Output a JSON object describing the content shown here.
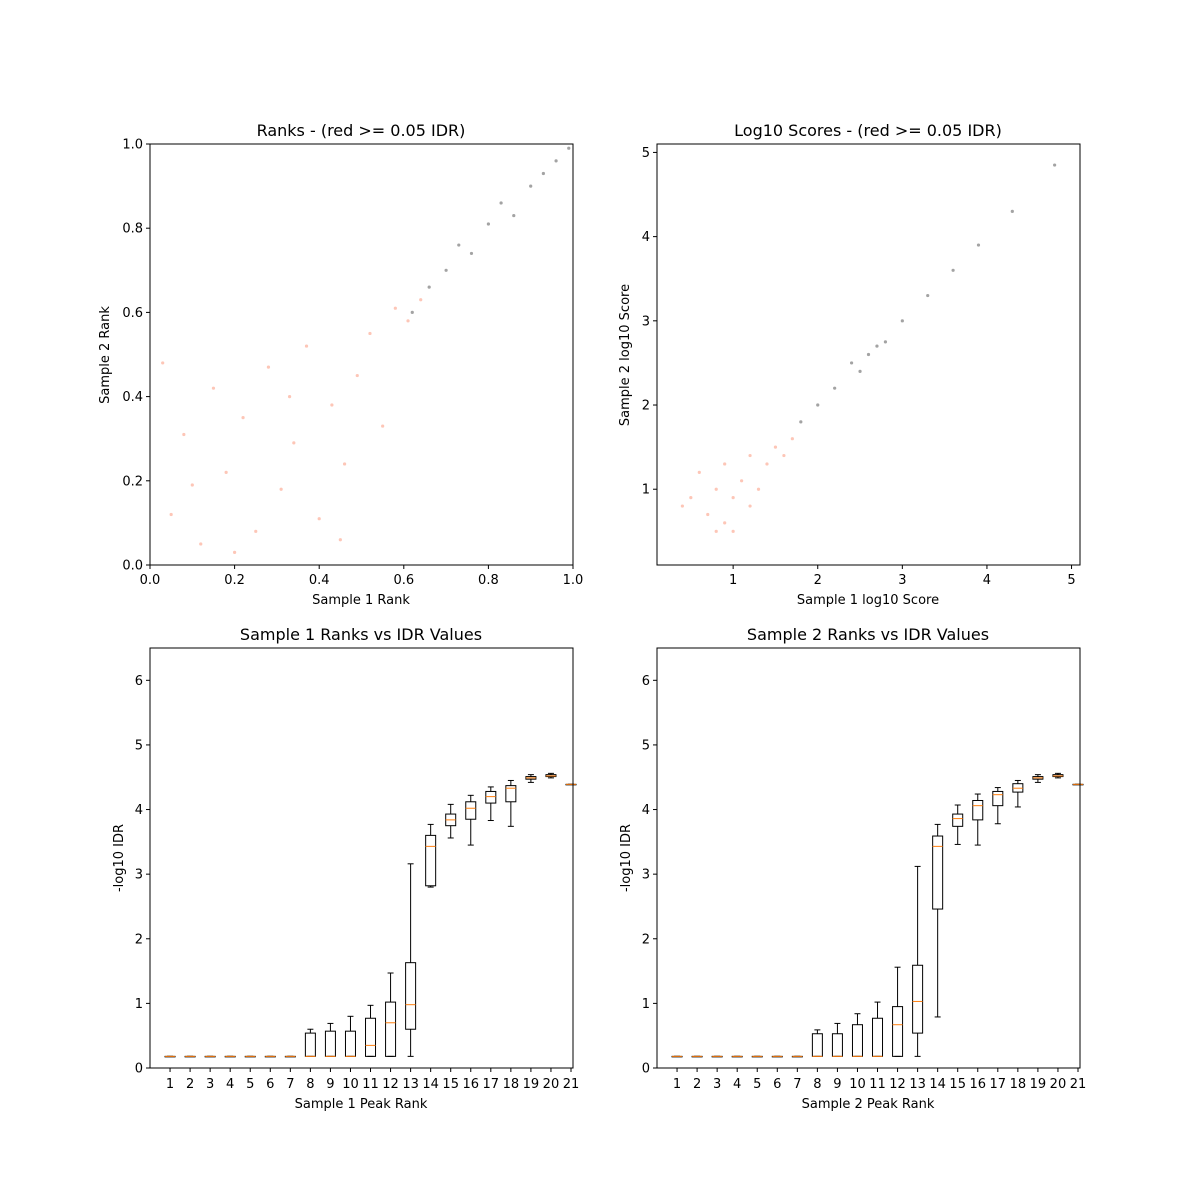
{
  "chart_data": [
    {
      "type": "scatter",
      "title": "Ranks - (red >= 0.05 IDR)",
      "xlabel": "Sample 1 Rank",
      "ylabel": "Sample 2 Rank",
      "xlim": [
        0.0,
        1.0
      ],
      "ylim": [
        0.0,
        1.0
      ],
      "xticks": [
        0.0,
        0.2,
        0.4,
        0.6,
        0.8,
        1.0
      ],
      "yticks": [
        0.0,
        0.2,
        0.4,
        0.6,
        0.8,
        1.0
      ],
      "xtick_labels": [
        "0.0",
        "0.2",
        "0.4",
        "0.6",
        "0.8",
        "1.0"
      ],
      "ytick_labels": [
        "0.0",
        "0.2",
        "0.4",
        "0.6",
        "0.8",
        "1.0"
      ],
      "colors": {
        "pass": "#333333",
        "fail": "#fa8060"
      },
      "series": [
        {
          "group": "fail",
          "points": [
            [
              0.05,
              0.12
            ],
            [
              0.08,
              0.31
            ],
            [
              0.12,
              0.05
            ],
            [
              0.15,
              0.42
            ],
            [
              0.18,
              0.22
            ],
            [
              0.22,
              0.35
            ],
            [
              0.25,
              0.08
            ],
            [
              0.28,
              0.47
            ],
            [
              0.31,
              0.18
            ],
            [
              0.34,
              0.29
            ],
            [
              0.37,
              0.52
            ],
            [
              0.4,
              0.11
            ],
            [
              0.43,
              0.38
            ],
            [
              0.46,
              0.24
            ],
            [
              0.49,
              0.45
            ],
            [
              0.52,
              0.55
            ],
            [
              0.55,
              0.33
            ],
            [
              0.58,
              0.61
            ],
            [
              0.61,
              0.58
            ],
            [
              0.64,
              0.63
            ],
            [
              0.03,
              0.48
            ],
            [
              0.1,
              0.19
            ],
            [
              0.2,
              0.03
            ],
            [
              0.33,
              0.4
            ],
            [
              0.45,
              0.06
            ]
          ]
        },
        {
          "group": "pass",
          "points": [
            [
              0.62,
              0.6
            ],
            [
              0.66,
              0.66
            ],
            [
              0.7,
              0.7
            ],
            [
              0.73,
              0.76
            ],
            [
              0.76,
              0.74
            ],
            [
              0.8,
              0.81
            ],
            [
              0.83,
              0.86
            ],
            [
              0.86,
              0.83
            ],
            [
              0.9,
              0.9
            ],
            [
              0.93,
              0.93
            ],
            [
              0.96,
              0.96
            ],
            [
              0.99,
              0.99
            ]
          ]
        }
      ]
    },
    {
      "type": "scatter",
      "title": "Log10 Scores - (red >= 0.05 IDR)",
      "xlabel": "Sample 1 log10 Score",
      "ylabel": "Sample 2 log10 Score",
      "xlim": [
        0.1,
        5.1
      ],
      "ylim": [
        0.1,
        5.1
      ],
      "xticks": [
        1,
        2,
        3,
        4,
        5
      ],
      "yticks": [
        1,
        2,
        3,
        4,
        5
      ],
      "xtick_labels": [
        "1",
        "2",
        "3",
        "4",
        "5"
      ],
      "ytick_labels": [
        "1",
        "2",
        "3",
        "4",
        "5"
      ],
      "colors": {
        "pass": "#333333",
        "fail": "#fa8060"
      },
      "series": [
        {
          "group": "fail",
          "points": [
            [
              0.5,
              0.9
            ],
            [
              0.7,
              0.7
            ],
            [
              0.8,
              1.0
            ],
            [
              0.9,
              0.6
            ],
            [
              1.0,
              0.9
            ],
            [
              1.1,
              1.1
            ],
            [
              1.2,
              0.8
            ],
            [
              0.6,
              1.2
            ],
            [
              1.3,
              1.0
            ],
            [
              0.9,
              1.3
            ],
            [
              1.4,
              1.3
            ],
            [
              1.5,
              1.5
            ],
            [
              1.6,
              1.4
            ],
            [
              1.7,
              1.6
            ],
            [
              1.0,
              0.5
            ],
            [
              0.4,
              0.8
            ],
            [
              1.2,
              1.4
            ],
            [
              0.8,
              0.5
            ]
          ]
        },
        {
          "group": "pass",
          "points": [
            [
              1.8,
              1.8
            ],
            [
              2.0,
              2.0
            ],
            [
              2.2,
              2.2
            ],
            [
              2.4,
              2.5
            ],
            [
              2.5,
              2.4
            ],
            [
              2.6,
              2.6
            ],
            [
              2.7,
              2.7
            ],
            [
              2.8,
              2.75
            ],
            [
              3.0,
              3.0
            ],
            [
              3.3,
              3.3
            ],
            [
              3.6,
              3.6
            ],
            [
              3.9,
              3.9
            ],
            [
              4.3,
              4.3
            ],
            [
              4.8,
              4.85
            ]
          ]
        }
      ]
    },
    {
      "type": "box",
      "title": "Sample 1 Ranks vs IDR Values",
      "xlabel": "Sample 1 Peak Rank",
      "ylabel": "-log10 IDR",
      "xlim": [
        0,
        21
      ],
      "ylim": [
        0,
        6.5
      ],
      "xticks": [
        1,
        2,
        3,
        4,
        5,
        6,
        7,
        8,
        9,
        10,
        11,
        12,
        13,
        14,
        15,
        16,
        17,
        18,
        19,
        20,
        21
      ],
      "yticks": [
        0,
        1,
        2,
        3,
        4,
        5,
        6
      ],
      "ytick_labels": [
        "0",
        "1",
        "2",
        "3",
        "4",
        "5",
        "6"
      ],
      "boxes": [
        {
          "pos": 1,
          "q1": 0.18,
          "med": 0.18,
          "q3": 0.18,
          "lo": 0.18,
          "hi": 0.18
        },
        {
          "pos": 2,
          "q1": 0.18,
          "med": 0.18,
          "q3": 0.18,
          "lo": 0.18,
          "hi": 0.18
        },
        {
          "pos": 3,
          "q1": 0.18,
          "med": 0.18,
          "q3": 0.18,
          "lo": 0.18,
          "hi": 0.18
        },
        {
          "pos": 4,
          "q1": 0.18,
          "med": 0.18,
          "q3": 0.18,
          "lo": 0.18,
          "hi": 0.18
        },
        {
          "pos": 5,
          "q1": 0.18,
          "med": 0.18,
          "q3": 0.18,
          "lo": 0.18,
          "hi": 0.18
        },
        {
          "pos": 6,
          "q1": 0.18,
          "med": 0.18,
          "q3": 0.18,
          "lo": 0.18,
          "hi": 0.18
        },
        {
          "pos": 7,
          "q1": 0.18,
          "med": 0.18,
          "q3": 0.18,
          "lo": 0.18,
          "hi": 0.18
        },
        {
          "pos": 8,
          "q1": 0.18,
          "med": 0.18,
          "q3": 0.54,
          "lo": 0.18,
          "hi": 0.6
        },
        {
          "pos": 9,
          "q1": 0.18,
          "med": 0.18,
          "q3": 0.57,
          "lo": 0.18,
          "hi": 0.69
        },
        {
          "pos": 10,
          "q1": 0.18,
          "med": 0.18,
          "q3": 0.57,
          "lo": 0.18,
          "hi": 0.8
        },
        {
          "pos": 11,
          "q1": 0.18,
          "med": 0.35,
          "q3": 0.77,
          "lo": 0.18,
          "hi": 0.97
        },
        {
          "pos": 12,
          "q1": 0.18,
          "med": 0.7,
          "q3": 1.02,
          "lo": 0.18,
          "hi": 1.47
        },
        {
          "pos": 13,
          "q1": 0.6,
          "med": 0.98,
          "q3": 1.63,
          "lo": 0.18,
          "hi": 3.16
        },
        {
          "pos": 14,
          "q1": 2.82,
          "med": 3.43,
          "q3": 3.6,
          "lo": 2.8,
          "hi": 3.77
        },
        {
          "pos": 15,
          "q1": 3.75,
          "med": 3.84,
          "q3": 3.93,
          "lo": 3.56,
          "hi": 4.08
        },
        {
          "pos": 16,
          "q1": 3.85,
          "med": 4.02,
          "q3": 4.12,
          "lo": 3.45,
          "hi": 4.22
        },
        {
          "pos": 17,
          "q1": 4.1,
          "med": 4.2,
          "q3": 4.28,
          "lo": 3.83,
          "hi": 4.35
        },
        {
          "pos": 18,
          "q1": 4.12,
          "med": 4.33,
          "q3": 4.37,
          "lo": 3.74,
          "hi": 4.45
        },
        {
          "pos": 19,
          "q1": 4.47,
          "med": 4.49,
          "q3": 4.51,
          "lo": 4.42,
          "hi": 4.54
        },
        {
          "pos": 20,
          "q1": 4.51,
          "med": 4.52,
          "q3": 4.54,
          "lo": 4.49,
          "hi": 4.56
        },
        {
          "pos": 21,
          "q1": 4.39,
          "med": 4.39,
          "q3": 4.39,
          "lo": 4.39,
          "hi": 4.39
        }
      ]
    },
    {
      "type": "box",
      "title": "Sample 2 Ranks vs IDR Values",
      "xlabel": "Sample 2 Peak Rank",
      "ylabel": "-log10 IDR",
      "xlim": [
        0,
        21
      ],
      "ylim": [
        0,
        6.5
      ],
      "xticks": [
        1,
        2,
        3,
        4,
        5,
        6,
        7,
        8,
        9,
        10,
        11,
        12,
        13,
        14,
        15,
        16,
        17,
        18,
        19,
        20,
        21
      ],
      "yticks": [
        0,
        1,
        2,
        3,
        4,
        5,
        6
      ],
      "ytick_labels": [
        "0",
        "1",
        "2",
        "3",
        "4",
        "5",
        "6"
      ],
      "boxes": [
        {
          "pos": 1,
          "q1": 0.18,
          "med": 0.18,
          "q3": 0.18,
          "lo": 0.18,
          "hi": 0.18
        },
        {
          "pos": 2,
          "q1": 0.18,
          "med": 0.18,
          "q3": 0.18,
          "lo": 0.18,
          "hi": 0.18
        },
        {
          "pos": 3,
          "q1": 0.18,
          "med": 0.18,
          "q3": 0.18,
          "lo": 0.18,
          "hi": 0.18
        },
        {
          "pos": 4,
          "q1": 0.18,
          "med": 0.18,
          "q3": 0.18,
          "lo": 0.18,
          "hi": 0.18
        },
        {
          "pos": 5,
          "q1": 0.18,
          "med": 0.18,
          "q3": 0.18,
          "lo": 0.18,
          "hi": 0.18
        },
        {
          "pos": 6,
          "q1": 0.18,
          "med": 0.18,
          "q3": 0.18,
          "lo": 0.18,
          "hi": 0.18
        },
        {
          "pos": 7,
          "q1": 0.18,
          "med": 0.18,
          "q3": 0.18,
          "lo": 0.18,
          "hi": 0.18
        },
        {
          "pos": 8,
          "q1": 0.18,
          "med": 0.18,
          "q3": 0.53,
          "lo": 0.18,
          "hi": 0.59
        },
        {
          "pos": 9,
          "q1": 0.18,
          "med": 0.18,
          "q3": 0.53,
          "lo": 0.18,
          "hi": 0.69
        },
        {
          "pos": 10,
          "q1": 0.18,
          "med": 0.18,
          "q3": 0.67,
          "lo": 0.18,
          "hi": 0.84
        },
        {
          "pos": 11,
          "q1": 0.18,
          "med": 0.18,
          "q3": 0.77,
          "lo": 0.18,
          "hi": 1.02
        },
        {
          "pos": 12,
          "q1": 0.18,
          "med": 0.67,
          "q3": 0.95,
          "lo": 0.18,
          "hi": 1.56
        },
        {
          "pos": 13,
          "q1": 0.54,
          "med": 1.03,
          "q3": 1.59,
          "lo": 0.18,
          "hi": 3.12
        },
        {
          "pos": 14,
          "q1": 2.46,
          "med": 3.43,
          "q3": 3.59,
          "lo": 0.79,
          "hi": 3.77
        },
        {
          "pos": 15,
          "q1": 3.74,
          "med": 3.86,
          "q3": 3.93,
          "lo": 3.46,
          "hi": 4.07
        },
        {
          "pos": 16,
          "q1": 3.84,
          "med": 4.06,
          "q3": 4.14,
          "lo": 3.45,
          "hi": 4.24
        },
        {
          "pos": 17,
          "q1": 4.06,
          "med": 4.23,
          "q3": 4.28,
          "lo": 3.78,
          "hi": 4.34
        },
        {
          "pos": 18,
          "q1": 4.27,
          "med": 4.33,
          "q3": 4.4,
          "lo": 4.04,
          "hi": 4.45
        },
        {
          "pos": 19,
          "q1": 4.47,
          "med": 4.49,
          "q3": 4.51,
          "lo": 4.42,
          "hi": 4.54
        },
        {
          "pos": 20,
          "q1": 4.51,
          "med": 4.52,
          "q3": 4.54,
          "lo": 4.49,
          "hi": 4.56
        },
        {
          "pos": 21,
          "q1": 4.39,
          "med": 4.39,
          "q3": 4.39,
          "lo": 4.39,
          "hi": 4.39
        }
      ]
    }
  ]
}
